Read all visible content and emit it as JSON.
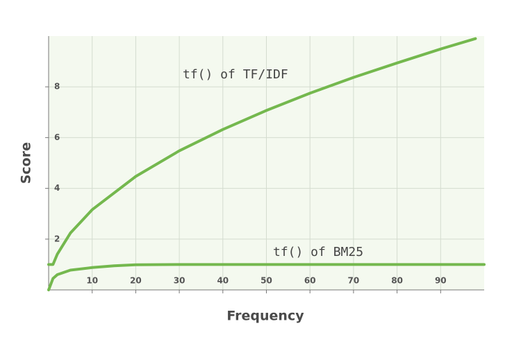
{
  "chart_data": {
    "type": "line",
    "x_label": "Frequency",
    "y_label": "Score",
    "annotations": [
      "tf() of TF/IDF",
      "tf() of BM25"
    ],
    "series": [
      {
        "name": "tf() of TF/IDF",
        "color": "#74b84e",
        "x": [
          0,
          1,
          2,
          5,
          10,
          20,
          30,
          40,
          50,
          60,
          70,
          80,
          90,
          98
        ],
        "values": [
          1,
          1,
          1.41,
          2.24,
          3.16,
          4.47,
          5.48,
          6.32,
          7.07,
          7.75,
          8.37,
          8.94,
          9.49,
          9.9
        ]
      },
      {
        "name": "tf() of BM25",
        "color": "#74b84e",
        "x": [
          0,
          1,
          2,
          5,
          10,
          15,
          20,
          30,
          40,
          50,
          60,
          70,
          80,
          90,
          100
        ],
        "values": [
          0,
          0.45,
          0.6,
          0.78,
          0.88,
          0.95,
          0.99,
          1,
          1,
          1,
          1,
          1,
          1,
          1,
          1
        ]
      }
    ],
    "xlim": [
      0,
      100
    ],
    "ylim": [
      0,
      10
    ],
    "xticks": [
      10,
      20,
      30,
      40,
      50,
      60,
      70,
      80,
      90
    ],
    "yticks": [
      2,
      4,
      6,
      8
    ],
    "grid": true
  }
}
